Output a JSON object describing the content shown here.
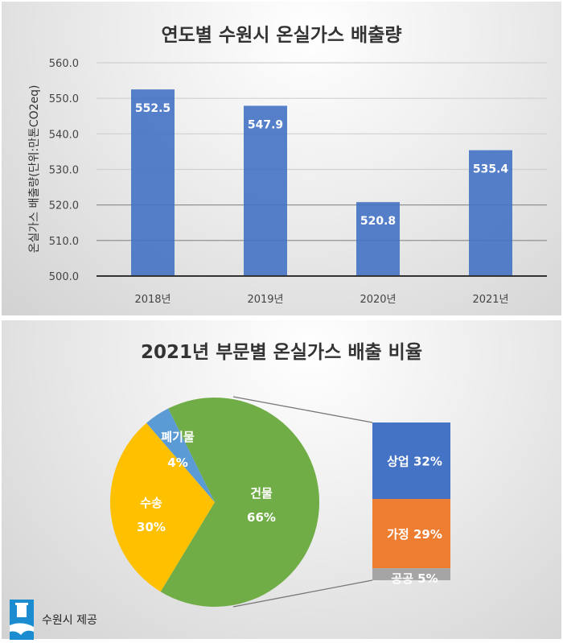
{
  "chart_data": [
    {
      "type": "bar",
      "title": "연도별 수원시 온실가스 배출량",
      "ylabel": "온실가스 배출량(단위:만톤CO2eq)",
      "xlabel": "",
      "categories": [
        "2018년",
        "2019년",
        "2020년",
        "2021년"
      ],
      "values": [
        552.5,
        547.9,
        520.8,
        535.4
      ],
      "value_labels": [
        "552.5",
        "547.9",
        "520.8",
        "535.4"
      ],
      "ylim": [
        500,
        560
      ],
      "yticks": [
        "500.0",
        "510.0",
        "520.0",
        "530.0",
        "540.0",
        "550.0",
        "560.0"
      ],
      "grid": true,
      "color": "#4472c4"
    },
    {
      "type": "pie",
      "title": "2021년 부문별 온실가스 배출 비율",
      "slices": [
        {
          "name": "건물",
          "value": 66,
          "label": "66%",
          "color": "#70ad47"
        },
        {
          "name": "수송",
          "value": 30,
          "label": "30%",
          "color": "#ffc000"
        },
        {
          "name": "폐기물",
          "value": 4,
          "label": "4%",
          "color": "#5b9bd5"
        }
      ],
      "breakdown_of": "건물",
      "breakdown": [
        {
          "name": "상업",
          "value": 32,
          "label": "상업 32%",
          "color": "#4472c4"
        },
        {
          "name": "가정",
          "value": 29,
          "label": "가정 29%",
          "color": "#ed7d31"
        },
        {
          "name": "공공",
          "value": 5,
          "label": "공공 5%",
          "color": "#a5a5a5"
        }
      ]
    }
  ],
  "credit": "수원시 제공"
}
